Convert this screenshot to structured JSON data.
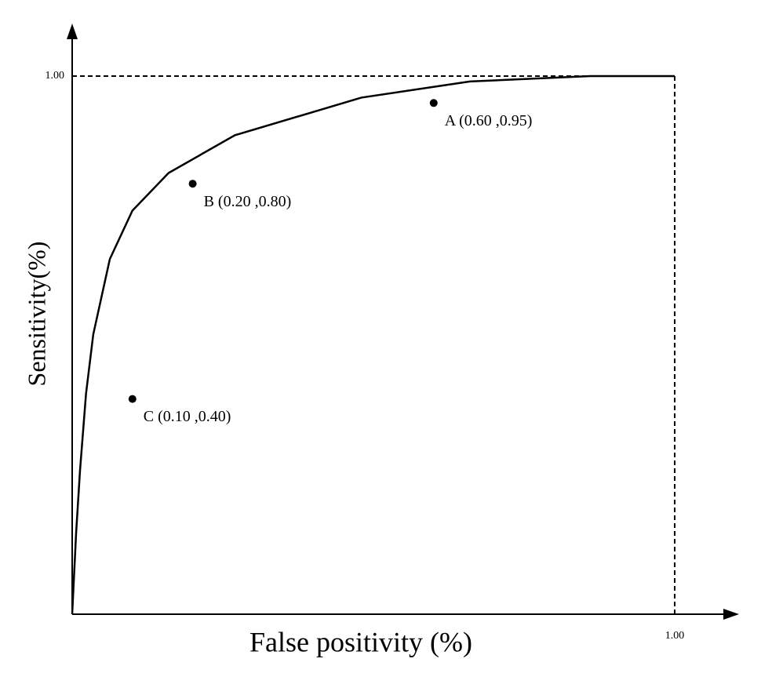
{
  "chart_data": {
    "type": "line",
    "x_label": "False positivity (%)",
    "y_label": "Sensitivity(%)",
    "xlim": [
      0,
      1
    ],
    "ylim": [
      0,
      1
    ],
    "xticks": [
      {
        "value": 1,
        "label": "1.00"
      }
    ],
    "yticks": [
      {
        "value": 1,
        "label": "1.00"
      }
    ],
    "curve": {
      "color": "#000000",
      "x": [
        0,
        0.0065,
        0.013,
        0.023,
        0.035,
        0.0625,
        0.1,
        0.16,
        0.27,
        0.48,
        0.66,
        0.86,
        1
      ],
      "y": [
        0,
        0.15,
        0.267,
        0.41,
        0.52,
        0.66,
        0.75,
        0.82,
        0.89,
        0.96,
        0.99,
        1,
        1
      ]
    },
    "points": {
      "x": [
        0.6,
        0.2,
        0.1
      ],
      "y": [
        0.95,
        0.8,
        0.4
      ],
      "labels": [
        "A (0.60 ,0.95)",
        "B (0.20 ,0.80)",
        "C (0.10 ,0.40)"
      ]
    }
  }
}
